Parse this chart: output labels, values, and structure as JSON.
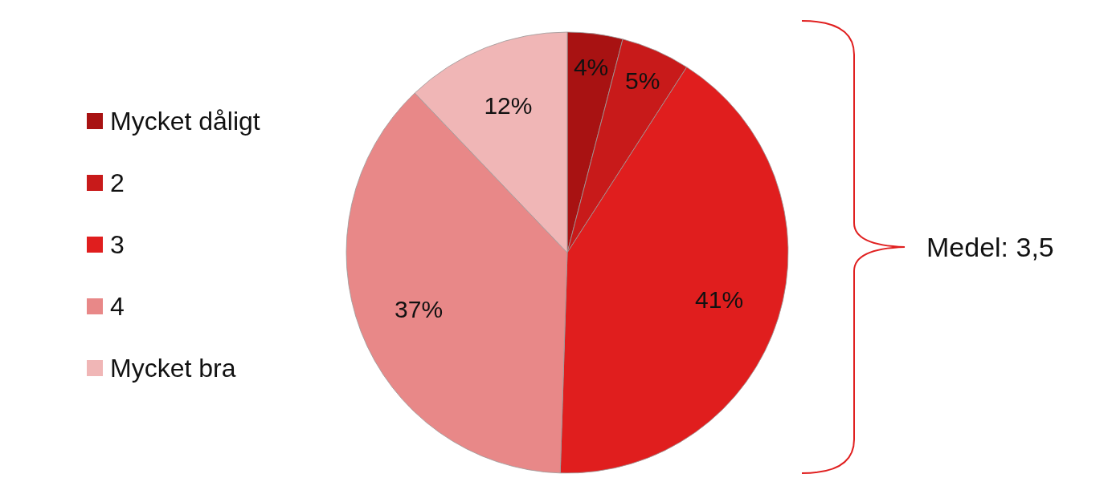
{
  "chart_data": {
    "type": "pie",
    "categories": [
      "Mycket dåligt",
      "2",
      "3",
      "4",
      "Mycket bra"
    ],
    "values": [
      4,
      5,
      41,
      37,
      12
    ],
    "value_labels": [
      "4%",
      "5%",
      "41%",
      "37%",
      "12%"
    ],
    "colors": [
      "#a81212",
      "#c81a1a",
      "#e01e1e",
      "#e88888",
      "#f0b6b6"
    ],
    "legend": "left",
    "annotations": [
      "Medel: 3,5"
    ]
  }
}
